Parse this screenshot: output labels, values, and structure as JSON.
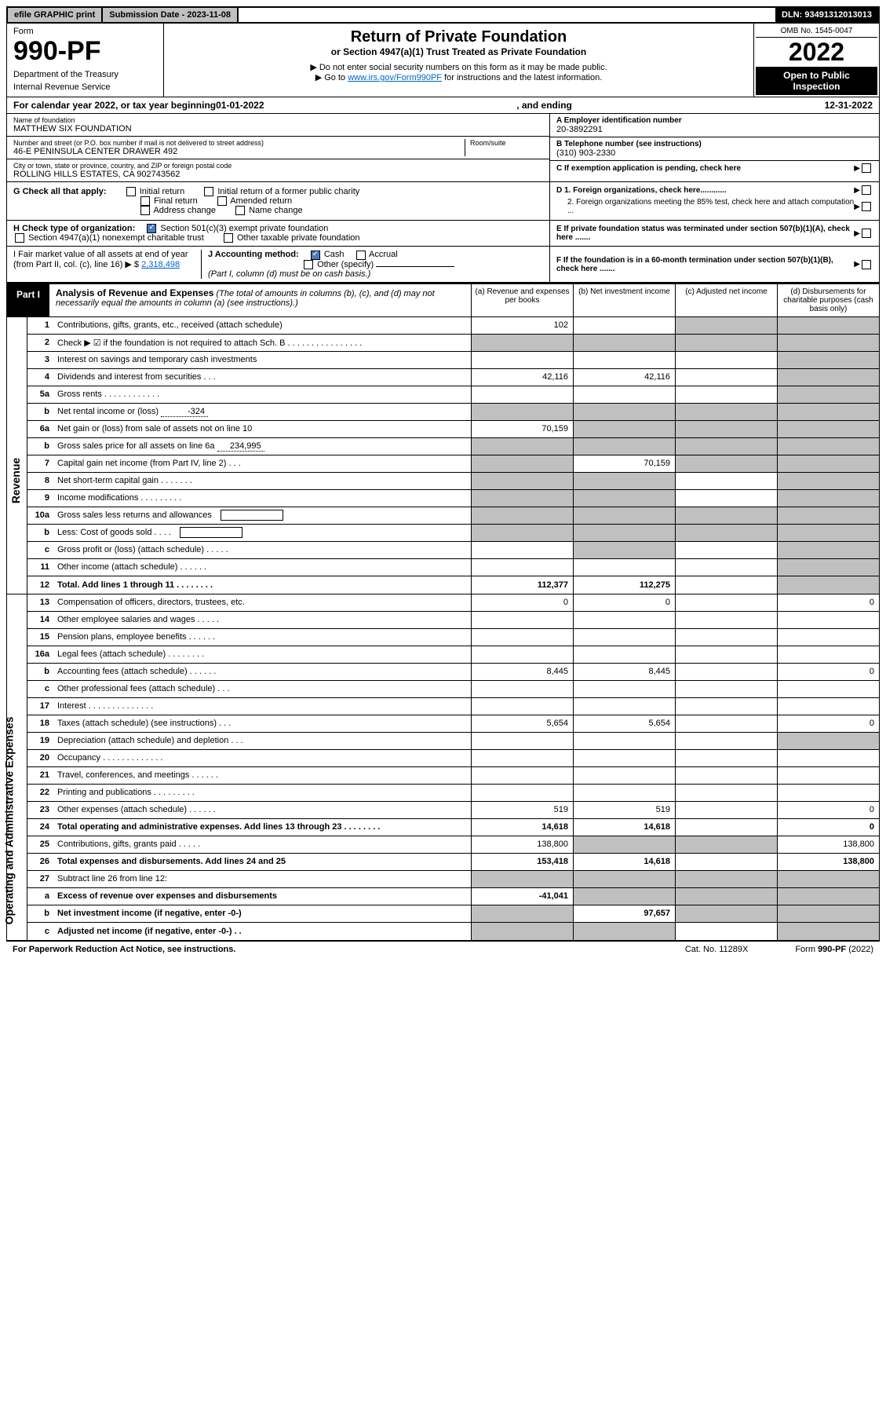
{
  "top": {
    "efile": "efile GRAPHIC print",
    "subdate_label": "Submission Date - ",
    "subdate": "2023-11-08",
    "dln_label": "DLN: ",
    "dln": "93491312013013"
  },
  "header": {
    "form": "Form",
    "form_no": "990-PF",
    "dept1": "Department of the Treasury",
    "dept2": "Internal Revenue Service",
    "title": "Return of Private Foundation",
    "subtitle": "or Section 4947(a)(1) Trust Treated as Private Foundation",
    "note1": "▶ Do not enter social security numbers on this form as it may be made public.",
    "note2_pre": "▶ Go to ",
    "note2_link": "www.irs.gov/Form990PF",
    "note2_post": " for instructions and the latest information.",
    "omb": "OMB No. 1545-0047",
    "year": "2022",
    "open": "Open to Public Inspection"
  },
  "calendar": {
    "pre": "For calendar year 2022, or tax year beginning ",
    "begin": "01-01-2022",
    "mid": ", and ending ",
    "end": "12-31-2022"
  },
  "info": {
    "name_label": "Name of foundation",
    "name": "MATTHEW SIX FOUNDATION",
    "addr_label": "Number and street (or P.O. box number if mail is not delivered to street address)",
    "addr": "46-E PENINSULA CENTER DRAWER 492",
    "room_label": "Room/suite",
    "city_label": "City or town, state or province, country, and ZIP or foreign postal code",
    "city": "ROLLING HILLS ESTATES, CA  902743562",
    "a_label": "A Employer identification number",
    "ein": "20-3892291",
    "b_label": "B Telephone number (see instructions)",
    "phone": "(310) 903-2330",
    "c_label": "C If exemption application is pending, check here"
  },
  "g": {
    "label": "G Check all that apply:",
    "opts": [
      "Initial return",
      "Initial return of a former public charity",
      "Final return",
      "Amended return",
      "Address change",
      "Name change"
    ]
  },
  "d": {
    "d1": "D 1. Foreign organizations, check here............",
    "d2": "2. Foreign organizations meeting the 85% test, check here and attach computation ..."
  },
  "h": {
    "label": "H Check type of organization:",
    "opt1": "Section 501(c)(3) exempt private foundation",
    "opt2": "Section 4947(a)(1) nonexempt charitable trust",
    "opt3": "Other taxable private foundation"
  },
  "e": {
    "text": "E If private foundation status was terminated under section 507(b)(1)(A), check here ......."
  },
  "i": {
    "label": "I Fair market value of all assets at end of year (from Part II, col. (c), line 16) ▶ $",
    "value": "2,318,498"
  },
  "j": {
    "label": "J Accounting method:",
    "cash": "Cash",
    "accrual": "Accrual",
    "other": "Other (specify)",
    "note": "(Part I, column (d) must be on cash basis.)"
  },
  "f": {
    "text": "F If the foundation is in a 60-month termination under section 507(b)(1)(B), check here ......."
  },
  "part1": {
    "label": "Part I",
    "title": "Analysis of Revenue and Expenses",
    "title_note": "(The total of amounts in columns (b), (c), and (d) may not necessarily equal the amounts in column (a) (see instructions).)",
    "col_a": "(a)  Revenue and expenses per books",
    "col_b": "(b)  Net investment income",
    "col_c": "(c)  Adjusted net income",
    "col_d": "(d)  Disbursements for charitable purposes (cash basis only)"
  },
  "side": {
    "revenue": "Revenue",
    "expenses": "Operating and Administrative Expenses"
  },
  "rows": [
    {
      "n": "1",
      "desc": "Contributions, gifts, grants, etc., received (attach schedule)",
      "a": "102",
      "b": "",
      "c": "shaded",
      "d": "shaded"
    },
    {
      "n": "2",
      "desc": "Check ▶ ☑ if the foundation is not required to attach Sch. B   .  .  .  .  .  .  .  .  .  .  .  .  .  .  .  .",
      "a": "shaded",
      "b": "shaded",
      "c": "shaded",
      "d": "shaded"
    },
    {
      "n": "3",
      "desc": "Interest on savings and temporary cash investments",
      "a": "",
      "b": "",
      "c": "",
      "d": "shaded"
    },
    {
      "n": "4",
      "desc": "Dividends and interest from securities  .  .  .",
      "a": "42,116",
      "b": "42,116",
      "c": "",
      "d": "shaded"
    },
    {
      "n": "5a",
      "desc": "Gross rents  .  .  .  .  .  .  .  .  .  .  .  .",
      "a": "",
      "b": "",
      "c": "",
      "d": "shaded"
    },
    {
      "n": "b",
      "desc": "Net rental income or (loss)",
      "inline": "-324",
      "a": "shaded",
      "b": "shaded",
      "c": "shaded",
      "d": "shaded"
    },
    {
      "n": "6a",
      "desc": "Net gain or (loss) from sale of assets not on line 10",
      "a": "70,159",
      "b": "shaded",
      "c": "shaded",
      "d": "shaded"
    },
    {
      "n": "b",
      "desc": "Gross sales price for all assets on line 6a",
      "inline": "234,995",
      "a": "shaded",
      "b": "shaded",
      "c": "shaded",
      "d": "shaded"
    },
    {
      "n": "7",
      "desc": "Capital gain net income (from Part IV, line 2)  .  .  .",
      "a": "shaded",
      "b": "70,159",
      "c": "shaded",
      "d": "shaded"
    },
    {
      "n": "8",
      "desc": "Net short-term capital gain  .  .  .  .  .  .  .",
      "a": "shaded",
      "b": "shaded",
      "c": "",
      "d": "shaded"
    },
    {
      "n": "9",
      "desc": "Income modifications  .  .  .  .  .  .  .  .  .",
      "a": "shaded",
      "b": "shaded",
      "c": "",
      "d": "shaded"
    },
    {
      "n": "10a",
      "desc": "Gross sales less returns and allowances",
      "box": true,
      "a": "shaded",
      "b": "shaded",
      "c": "shaded",
      "d": "shaded"
    },
    {
      "n": "b",
      "desc": "Less: Cost of goods sold  .  .  .  .",
      "box": true,
      "a": "shaded",
      "b": "shaded",
      "c": "shaded",
      "d": "shaded"
    },
    {
      "n": "c",
      "desc": "Gross profit or (loss) (attach schedule)  .  .  .  .  .",
      "a": "",
      "b": "shaded",
      "c": "",
      "d": "shaded"
    },
    {
      "n": "11",
      "desc": "Other income (attach schedule)  .  .  .  .  .  .",
      "a": "",
      "b": "",
      "c": "",
      "d": "shaded"
    },
    {
      "n": "12",
      "desc": "Total. Add lines 1 through 11  .  .  .  .  .  .  .  .",
      "bold": true,
      "a": "112,377",
      "b": "112,275",
      "c": "",
      "d": "shaded"
    },
    {
      "n": "13",
      "desc": "Compensation of officers, directors, trustees, etc.",
      "a": "0",
      "b": "0",
      "c": "",
      "d": "0"
    },
    {
      "n": "14",
      "desc": "Other employee salaries and wages  .  .  .  .  .",
      "a": "",
      "b": "",
      "c": "",
      "d": ""
    },
    {
      "n": "15",
      "desc": "Pension plans, employee benefits  .  .  .  .  .  .",
      "a": "",
      "b": "",
      "c": "",
      "d": ""
    },
    {
      "n": "16a",
      "desc": "Legal fees (attach schedule)  .  .  .  .  .  .  .  .",
      "a": "",
      "b": "",
      "c": "",
      "d": ""
    },
    {
      "n": "b",
      "desc": "Accounting fees (attach schedule)  .  .  .  .  .  .",
      "a": "8,445",
      "b": "8,445",
      "c": "",
      "d": "0"
    },
    {
      "n": "c",
      "desc": "Other professional fees (attach schedule)  .  .  .",
      "a": "",
      "b": "",
      "c": "",
      "d": ""
    },
    {
      "n": "17",
      "desc": "Interest  .  .  .  .  .  .  .  .  .  .  .  .  .  .",
      "a": "",
      "b": "",
      "c": "",
      "d": ""
    },
    {
      "n": "18",
      "desc": "Taxes (attach schedule) (see instructions)  .  .  .",
      "a": "5,654",
      "b": "5,654",
      "c": "",
      "d": "0"
    },
    {
      "n": "19",
      "desc": "Depreciation (attach schedule) and depletion  .  .  .",
      "a": "",
      "b": "",
      "c": "",
      "d": "shaded"
    },
    {
      "n": "20",
      "desc": "Occupancy  .  .  .  .  .  .  .  .  .  .  .  .  .",
      "a": "",
      "b": "",
      "c": "",
      "d": ""
    },
    {
      "n": "21",
      "desc": "Travel, conferences, and meetings  .  .  .  .  .  .",
      "a": "",
      "b": "",
      "c": "",
      "d": ""
    },
    {
      "n": "22",
      "desc": "Printing and publications  .  .  .  .  .  .  .  .  .",
      "a": "",
      "b": "",
      "c": "",
      "d": ""
    },
    {
      "n": "23",
      "desc": "Other expenses (attach schedule)  .  .  .  .  .  .",
      "a": "519",
      "b": "519",
      "c": "",
      "d": "0"
    },
    {
      "n": "24",
      "desc": "Total operating and administrative expenses. Add lines 13 through 23  .  .  .  .  .  .  .  .",
      "bold": true,
      "a": "14,618",
      "b": "14,618",
      "c": "",
      "d": "0"
    },
    {
      "n": "25",
      "desc": "Contributions, gifts, grants paid  .  .  .  .  .",
      "a": "138,800",
      "b": "shaded",
      "c": "shaded",
      "d": "138,800"
    },
    {
      "n": "26",
      "desc": "Total expenses and disbursements. Add lines 24 and 25",
      "bold": true,
      "a": "153,418",
      "b": "14,618",
      "c": "",
      "d": "138,800"
    },
    {
      "n": "27",
      "desc": "Subtract line 26 from line 12:",
      "a": "shaded",
      "b": "shaded",
      "c": "shaded",
      "d": "shaded"
    },
    {
      "n": "a",
      "desc": "Excess of revenue over expenses and disbursements",
      "bold": true,
      "a": "-41,041",
      "b": "shaded",
      "c": "shaded",
      "d": "shaded"
    },
    {
      "n": "b",
      "desc": "Net investment income (if negative, enter -0-)",
      "bold": true,
      "a": "shaded",
      "b": "97,657",
      "c": "shaded",
      "d": "shaded"
    },
    {
      "n": "c",
      "desc": "Adjusted net income (if negative, enter -0-)  .  .",
      "bold": true,
      "a": "shaded",
      "b": "shaded",
      "c": "",
      "d": "shaded"
    }
  ],
  "footer": {
    "left": "For Paperwork Reduction Act Notice, see instructions.",
    "mid": "Cat. No. 11289X",
    "right": "Form 990-PF (2022)"
  }
}
